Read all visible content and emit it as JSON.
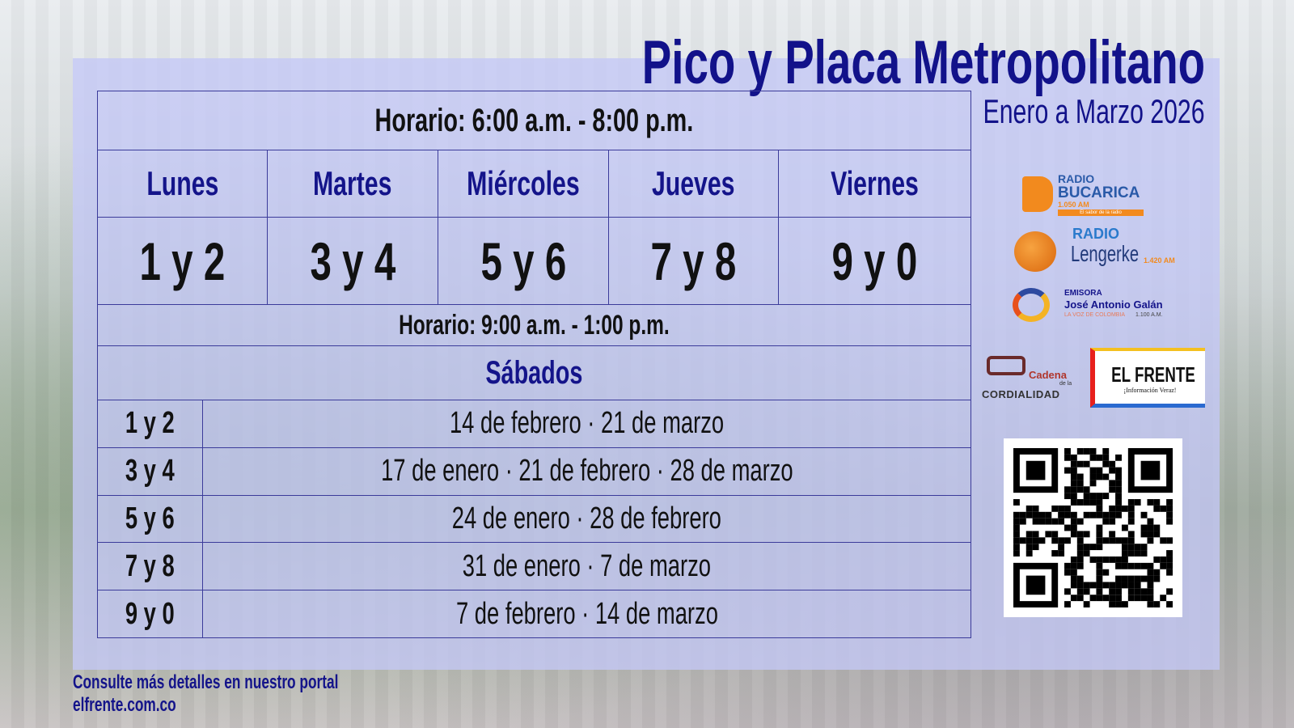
{
  "title": "Pico y Placa Metropolitano",
  "subtitle": "Enero a Marzo 2026",
  "weekday_schedule": {
    "horario": "Horario: 6:00 a.m. - 8:00 p.m.",
    "days": [
      "Lunes",
      "Martes",
      "Miércoles",
      "Jueves",
      "Viernes"
    ],
    "plates": [
      "1 y 2",
      "3 y 4",
      "5 y 6",
      "7 y 8",
      "9 y 0"
    ]
  },
  "saturday_schedule": {
    "horario": "Horario: 9:00 a.m. - 1:00 p.m.",
    "heading": "Sábados",
    "rows": [
      {
        "plates": "1 y 2",
        "dates": "14 de febrero · 21 de marzo"
      },
      {
        "plates": "3 y 4",
        "dates": "17 de enero · 21 de febrero · 28 de marzo"
      },
      {
        "plates": "5 y 6",
        "dates": "24 de enero · 28 de febrero"
      },
      {
        "plates": "7 y 8",
        "dates": "31 de enero · 7 de marzo"
      },
      {
        "plates": "9 y 0",
        "dates": "7 de febrero · 14 de marzo"
      }
    ]
  },
  "logos": {
    "bucarica": {
      "line1": "RADIO",
      "line2": "BUCARICA",
      "line3": "1.050 AM",
      "tagline": "El sabor de la radio"
    },
    "lengerke": {
      "line1": "RADIO",
      "line2": "Lengerke",
      "freq": "1.420 AM"
    },
    "galan": {
      "line1": "EMISORA",
      "line2": "José Antonio Galán",
      "line3": "LA VOZ DE COLOMBIA",
      "freq": "1.100 A.M."
    },
    "cordialidad": {
      "line1": "Cadena",
      "line2": "de la",
      "line3": "CORDIALIDAD"
    },
    "elfrente": {
      "name": "EL FRENTE",
      "tagline": "¡Información Veraz!"
    }
  },
  "footer": {
    "line1": "Consulte más detalles en nuestro portal",
    "line2": "elfrente.com.co"
  },
  "colors": {
    "accent": "#14148a",
    "panel": "#c4c8f6"
  }
}
